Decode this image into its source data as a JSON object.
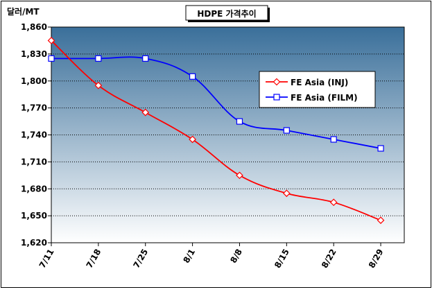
{
  "chart_data": {
    "type": "line",
    "title": "HDPE 가격추이",
    "unit_label": "달러/MT",
    "categories": [
      "7/11",
      "7/18",
      "7/25",
      "8/1",
      "8/8",
      "8/15",
      "8/22",
      "8/29"
    ],
    "ylim": [
      1620,
      1860
    ],
    "yticks": [
      "1,620",
      "1,650",
      "1,680",
      "1,710",
      "1,740",
      "1,770",
      "1,800",
      "1,830",
      "1,860"
    ],
    "ytick_values": [
      1620,
      1650,
      1680,
      1710,
      1740,
      1770,
      1800,
      1830,
      1860
    ],
    "grid": true,
    "legend_position": "right",
    "series": [
      {
        "name": "FE Asia (INJ)",
        "color": "#ff0000",
        "marker": "diamond",
        "values": [
          1845,
          1795,
          1765,
          1735,
          1695,
          1675,
          1665,
          1645
        ]
      },
      {
        "name": "FE Asia (FILM)",
        "color": "#0000ff",
        "marker": "square",
        "values": [
          1825,
          1825,
          1825,
          1805,
          1755,
          1745,
          1735,
          1725
        ]
      }
    ],
    "colors": {
      "plot_top": "#3a6f9a",
      "plot_bottom": "#ffffff",
      "grid": "#000000",
      "frame": "#000000"
    }
  }
}
